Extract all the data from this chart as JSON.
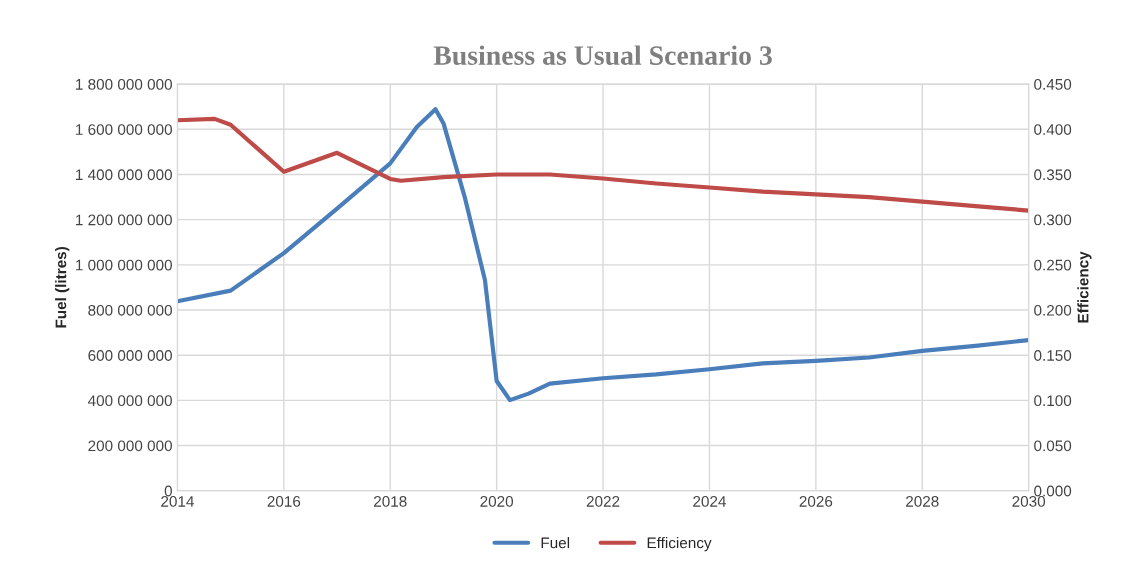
{
  "chart_data": {
    "type": "line",
    "title": "Business as Usual Scenario 3",
    "ylabel": "Fuel (litres)",
    "y2label": "Efficiency",
    "series": [
      {
        "name": "Fuel",
        "color": "#4a7ebb",
        "x": [
          2014,
          2015,
          2016,
          2017,
          2018,
          2018.5,
          2018.85,
          2019,
          2019.4,
          2019.78,
          2020,
          2020.25,
          2020.6,
          2021,
          2022,
          2023,
          2024,
          2025,
          2026,
          2027,
          2028,
          2029,
          2030
        ],
        "values": [
          839000000,
          886000000,
          1052000000,
          1249000000,
          1449000000,
          1610000000,
          1689000000,
          1627000000,
          1300000000,
          933000000,
          486000000,
          401000000,
          430000000,
          474000000,
          498000000,
          515000000,
          538000000,
          564000000,
          575000000,
          590000000,
          619000000,
          641000000,
          667000000
        ]
      },
      {
        "name": "Efficiency",
        "color": "#be4b48",
        "axis": "y2",
        "x": [
          2014,
          2014.7,
          2015,
          2016,
          2017,
          2018,
          2018.2,
          2019,
          2020,
          2021,
          2022,
          2023,
          2024,
          2025,
          2026,
          2027,
          2028,
          2029,
          2030
        ],
        "values": [
          0.41,
          0.4115,
          0.405,
          0.353,
          0.374,
          0.345,
          0.343,
          0.347,
          0.35,
          0.35,
          0.3455,
          0.34,
          0.3356,
          0.331,
          0.328,
          0.325,
          0.32,
          0.315,
          0.31
        ]
      }
    ],
    "xlim": [
      2014,
      2030
    ],
    "xticks": [
      2014,
      2016,
      2018,
      2020,
      2022,
      2024,
      2026,
      2028,
      2030
    ],
    "ylim": [
      0,
      1800000000
    ],
    "yticks": [
      0,
      {
        "value": 200000000,
        "label": "200 000 000"
      },
      {
        "value": 400000000,
        "label": "400 000 000"
      },
      {
        "value": 600000000,
        "label": "600 000 000"
      },
      {
        "value": 800000000,
        "label": "800 000 000"
      },
      {
        "value": 1000000000,
        "label": "1 000 000 000"
      },
      {
        "value": 1200000000,
        "label": "1 200 000 000"
      },
      {
        "value": 1400000000,
        "label": "1 400 000 000"
      },
      {
        "value": 1600000000,
        "label": "1 600 000 000"
      },
      {
        "value": 1800000000,
        "label": "1 800 000 000"
      }
    ],
    "y2lim": [
      0,
      0.45
    ],
    "y2ticks": [
      {
        "value": 0,
        "label": "0.000"
      },
      {
        "value": 0.05,
        "label": "0.050"
      },
      {
        "value": 0.1,
        "label": "0.100"
      },
      {
        "value": 0.15,
        "label": "0.150"
      },
      {
        "value": 0.2,
        "label": "0.200"
      },
      {
        "value": 0.25,
        "label": "0.250"
      },
      {
        "value": 0.3,
        "label": "0.300"
      },
      {
        "value": 0.35,
        "label": "0.350"
      },
      {
        "value": 0.4,
        "label": "0.400"
      },
      {
        "value": 0.45,
        "label": "0.450"
      }
    ],
    "grid": true,
    "legend": "bottom",
    "marker": "none",
    "line_style": "solid"
  }
}
